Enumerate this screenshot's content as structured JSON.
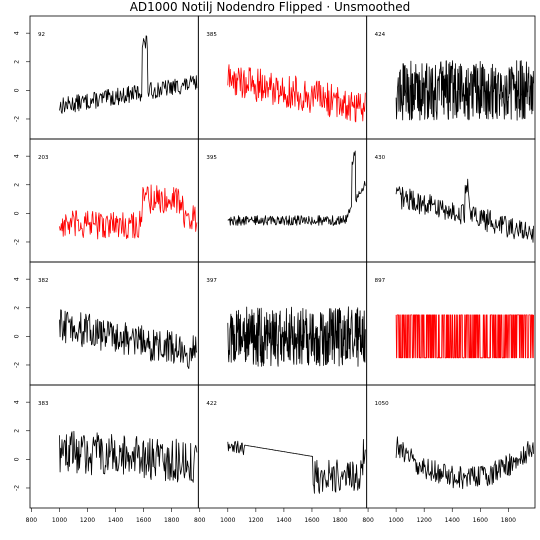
{
  "title": "AD1000 Notilj Nodendro Flipped · Unsmoothed",
  "colors": {
    "black": "#000000",
    "red": "#ff0000",
    "frame": "#000000"
  },
  "chart_data": {
    "type": "line",
    "grid": false,
    "layout": "4x3 panel matrix",
    "shared_x_ticks": [
      "800",
      "1000",
      "1200",
      "1400",
      "1600",
      "1800"
    ],
    "shared_y_ticks": [
      "-2",
      "0",
      "2",
      "4"
    ],
    "xlim": [
      790,
      1990
    ],
    "ylim": [
      -3.4,
      5.2
    ],
    "panels": [
      {
        "label": "92",
        "color": "black",
        "x_start": 1000,
        "x_end": 1980,
        "pattern": "rising_spike"
      },
      {
        "label": "385",
        "color": "red",
        "x_start": 1000,
        "x_end": 1980,
        "pattern": "declining_noisy"
      },
      {
        "label": "424",
        "color": "black",
        "x_start": 1000,
        "x_end": 1980,
        "pattern": "dense_noise"
      },
      {
        "label": "203",
        "color": "red",
        "x_start": 1000,
        "x_end": 1980,
        "pattern": "step_up"
      },
      {
        "label": "395",
        "color": "black",
        "x_start": 1000,
        "x_end": 1980,
        "pattern": "end_spike"
      },
      {
        "label": "430",
        "color": "black",
        "x_start": 1000,
        "x_end": 1980,
        "pattern": "declining"
      },
      {
        "label": "382",
        "color": "black",
        "x_start": 1000,
        "x_end": 1980,
        "pattern": "declining_noisy"
      },
      {
        "label": "397",
        "color": "black",
        "x_start": 1000,
        "x_end": 1980,
        "pattern": "dense_noise"
      },
      {
        "label": "897",
        "color": "red",
        "x_start": 1000,
        "x_end": 1980,
        "pattern": "square"
      },
      {
        "label": "383",
        "color": "black",
        "x_start": 1000,
        "x_end": 1980,
        "pattern": "noisy_flat"
      },
      {
        "label": "422",
        "color": "black",
        "x_start": 1000,
        "x_end": 1980,
        "pattern": "gap_decline"
      },
      {
        "label": "1050",
        "color": "black",
        "x_start": 1000,
        "x_end": 1980,
        "pattern": "u_shape"
      }
    ]
  }
}
